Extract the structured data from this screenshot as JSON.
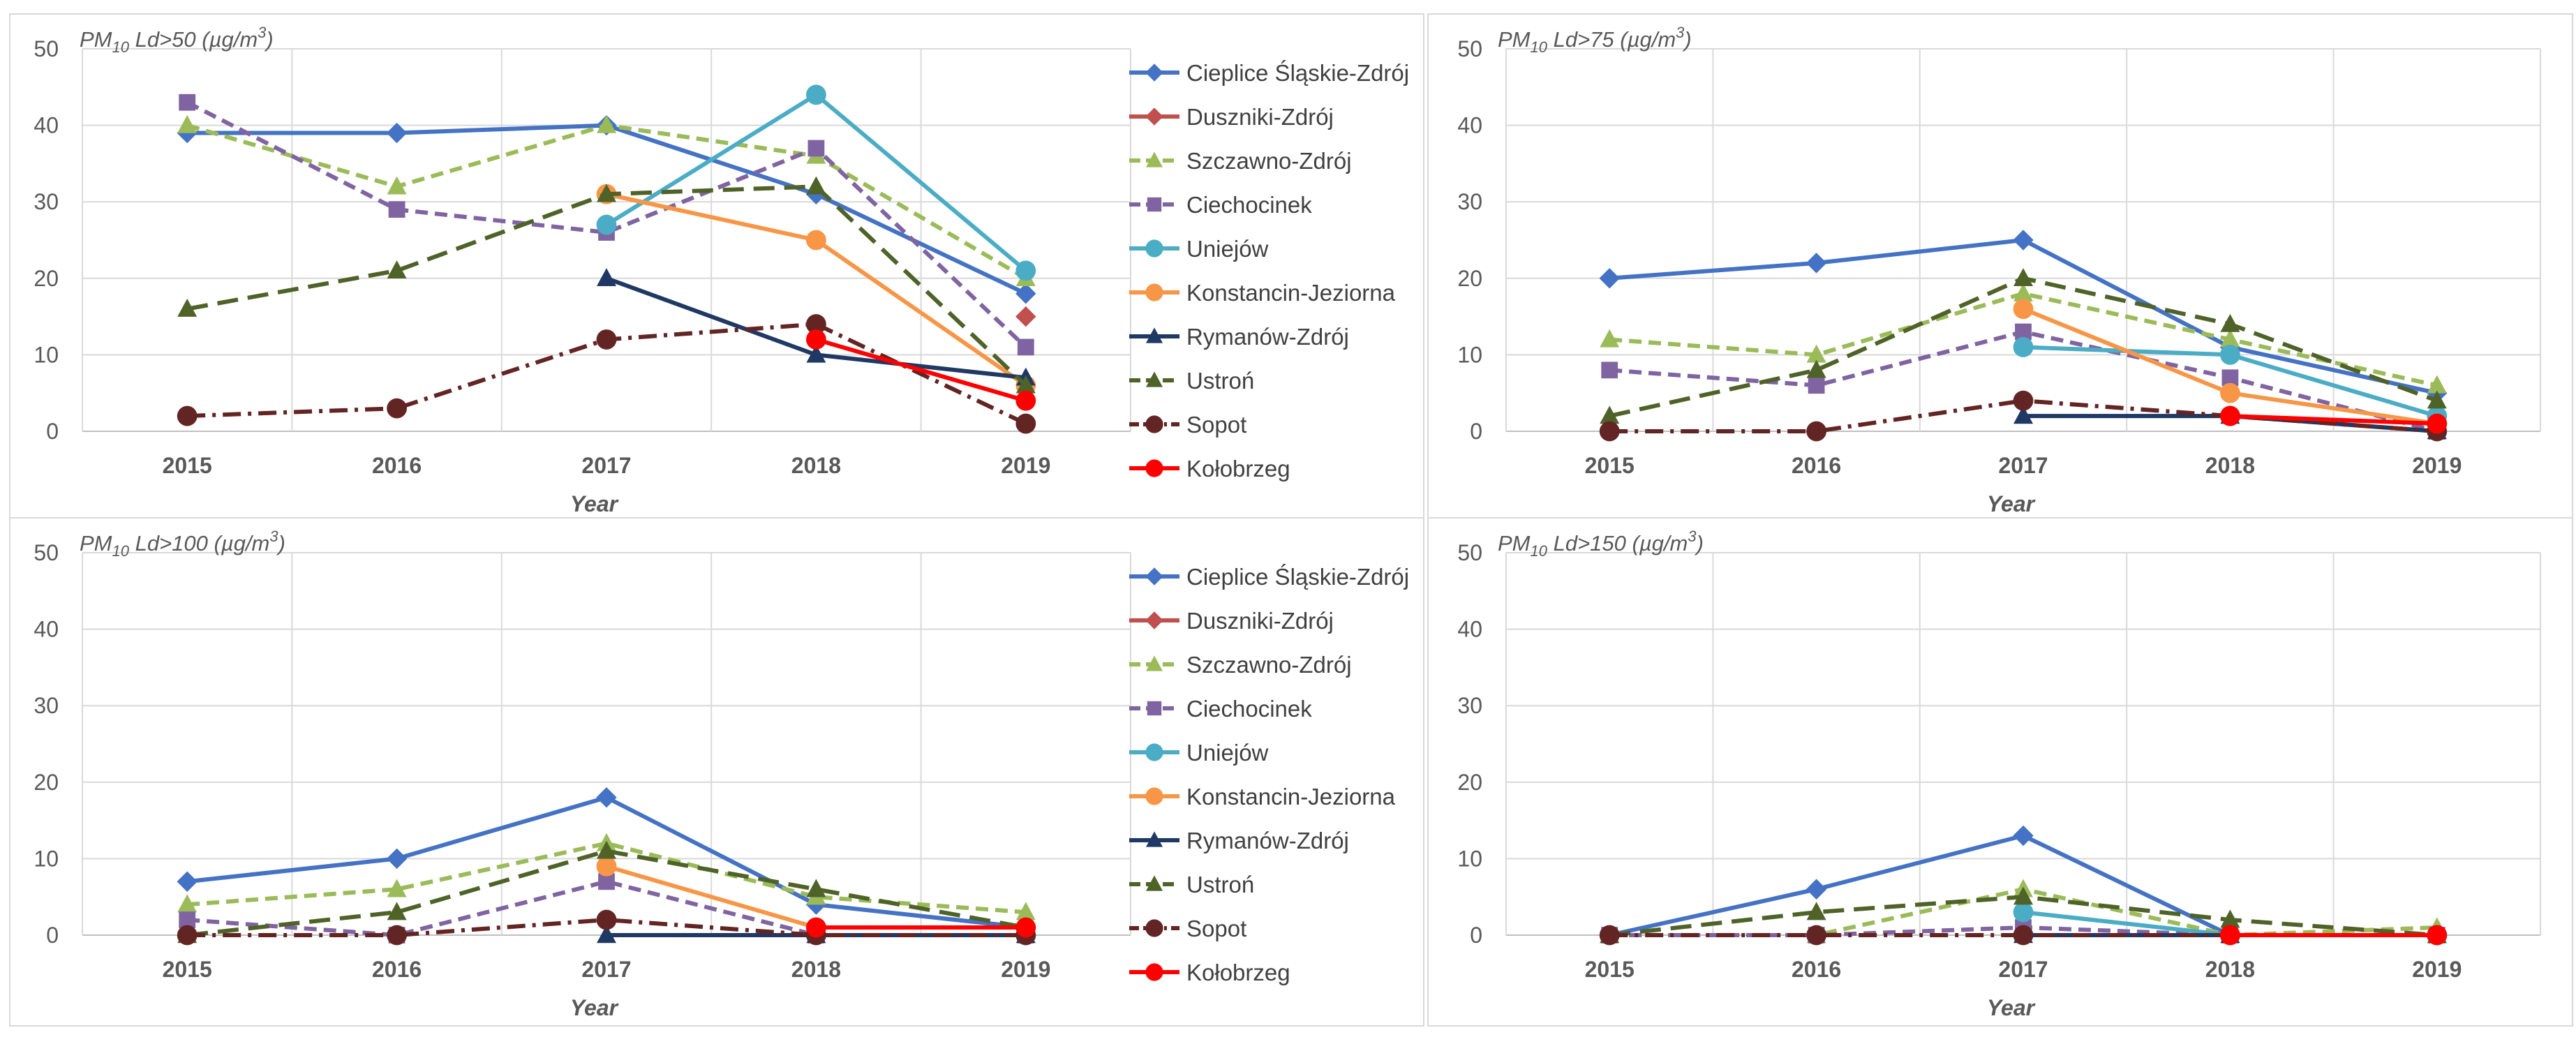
{
  "chart_data": [
    {
      "type": "line",
      "title_parts": [
        "PM",
        "10",
        "  Ld>50 (µg/m",
        "3",
        ")"
      ],
      "xlabel": "Year",
      "categories": [
        "2015",
        "2016",
        "2017",
        "2018",
        "2019"
      ],
      "ylim": [
        0,
        50
      ],
      "yticks": [
        "0",
        "10",
        "20",
        "30",
        "40",
        "50"
      ],
      "grid": true,
      "legend": "right",
      "series": [
        {
          "name": "Cieplice Śląskie-Zdrój",
          "values": [
            39,
            39,
            40,
            31,
            18
          ]
        },
        {
          "name": "Duszniki-Zdrój",
          "values": [
            null,
            null,
            null,
            null,
            15
          ]
        },
        {
          "name": "Szczawno-Zdrój",
          "values": [
            40,
            32,
            40,
            36,
            20
          ]
        },
        {
          "name": "Ciechocinek",
          "values": [
            43,
            29,
            26,
            37,
            11
          ]
        },
        {
          "name": "Uniejów",
          "values": [
            null,
            null,
            27,
            44,
            21
          ]
        },
        {
          "name": "Konstancin-Jeziorna",
          "values": [
            null,
            null,
            31,
            25,
            6
          ]
        },
        {
          "name": "Rymanów-Zdrój",
          "values": [
            null,
            null,
            20,
            10,
            7
          ]
        },
        {
          "name": "Ustroń",
          "values": [
            16,
            21,
            31,
            32,
            6
          ]
        },
        {
          "name": "Sopot",
          "values": [
            2,
            3,
            12,
            14,
            1
          ]
        },
        {
          "name": "Kołobrzeg",
          "values": [
            null,
            null,
            null,
            12,
            4
          ]
        }
      ]
    },
    {
      "type": "line",
      "title_parts": [
        "PM",
        "10",
        "  Ld>75 (µg/m",
        "3",
        ")"
      ],
      "xlabel": "Year",
      "categories": [
        "2015",
        "2016",
        "2017",
        "2018",
        "2019"
      ],
      "ylim": [
        0,
        50
      ],
      "yticks": [
        "0",
        "10",
        "20",
        "30",
        "40",
        "50"
      ],
      "grid": true,
      "legend": "none",
      "series": [
        {
          "name": "Cieplice Śląskie-Zdrój",
          "values": [
            20,
            22,
            25,
            11,
            5
          ]
        },
        {
          "name": "Duszniki-Zdrój",
          "values": [
            null,
            null,
            null,
            null,
            null
          ]
        },
        {
          "name": "Szczawno-Zdrój",
          "values": [
            12,
            10,
            18,
            12,
            6
          ]
        },
        {
          "name": "Ciechocinek",
          "values": [
            8,
            6,
            13,
            7,
            0
          ]
        },
        {
          "name": "Uniejów",
          "values": [
            null,
            null,
            11,
            10,
            2
          ]
        },
        {
          "name": "Konstancin-Jeziorna",
          "values": [
            null,
            null,
            16,
            5,
            1
          ]
        },
        {
          "name": "Rymanów-Zdrój",
          "values": [
            null,
            null,
            2,
            2,
            0
          ]
        },
        {
          "name": "Ustroń",
          "values": [
            2,
            8,
            20,
            14,
            4
          ]
        },
        {
          "name": "Sopot",
          "values": [
            0,
            0,
            4,
            2,
            0
          ]
        },
        {
          "name": "Kołobrzeg",
          "values": [
            null,
            null,
            null,
            2,
            1
          ]
        }
      ]
    },
    {
      "type": "line",
      "title_parts": [
        "PM",
        "10",
        "  Ld>100 (µg/m",
        "3",
        ")"
      ],
      "xlabel": "Year",
      "categories": [
        "2015",
        "2016",
        "2017",
        "2018",
        "2019"
      ],
      "ylim": [
        0,
        50
      ],
      "yticks": [
        "0",
        "10",
        "20",
        "30",
        "40",
        "50"
      ],
      "grid": true,
      "legend": "right",
      "series": [
        {
          "name": "Cieplice Śląskie-Zdrój",
          "values": [
            7,
            10,
            18,
            4,
            1
          ]
        },
        {
          "name": "Duszniki-Zdrój",
          "values": [
            null,
            null,
            null,
            null,
            null
          ]
        },
        {
          "name": "Szczawno-Zdrój",
          "values": [
            4,
            6,
            12,
            5,
            3
          ]
        },
        {
          "name": "Ciechocinek",
          "values": [
            2,
            0,
            7,
            0,
            0
          ]
        },
        {
          "name": "Uniejów",
          "values": [
            null,
            null,
            null,
            0,
            0
          ]
        },
        {
          "name": "Konstancin-Jeziorna",
          "values": [
            null,
            null,
            9,
            1,
            1
          ]
        },
        {
          "name": "Rymanów-Zdrój",
          "values": [
            null,
            null,
            0,
            0,
            0
          ]
        },
        {
          "name": "Ustroń",
          "values": [
            0,
            3,
            11,
            6,
            1
          ]
        },
        {
          "name": "Sopot",
          "values": [
            0,
            0,
            2,
            0,
            0
          ]
        },
        {
          "name": "Kołobrzeg",
          "values": [
            null,
            null,
            null,
            1,
            1
          ]
        }
      ]
    },
    {
      "type": "line",
      "title_parts": [
        "PM",
        "10",
        "  Ld>150 (µg/m",
        "3",
        ")"
      ],
      "xlabel": "Year",
      "categories": [
        "2015",
        "2016",
        "2017",
        "2018",
        "2019"
      ],
      "ylim": [
        0,
        50
      ],
      "yticks": [
        "0",
        "10",
        "20",
        "30",
        "40",
        "50"
      ],
      "grid": true,
      "legend": "none",
      "series": [
        {
          "name": "Cieplice Śląskie-Zdrój",
          "values": [
            0,
            6,
            13,
            0,
            0
          ]
        },
        {
          "name": "Duszniki-Zdrój",
          "values": [
            null,
            null,
            null,
            null,
            null
          ]
        },
        {
          "name": "Szczawno-Zdrój",
          "values": [
            0,
            0,
            6,
            0,
            1
          ]
        },
        {
          "name": "Ciechocinek",
          "values": [
            0,
            0,
            1,
            0,
            0
          ]
        },
        {
          "name": "Uniejów",
          "values": [
            null,
            null,
            3,
            0,
            0
          ]
        },
        {
          "name": "Konstancin-Jeziorna",
          "values": [
            null,
            null,
            null,
            null,
            null
          ]
        },
        {
          "name": "Rymanów-Zdrój",
          "values": [
            null,
            null,
            0,
            0,
            0
          ]
        },
        {
          "name": "Ustroń",
          "values": [
            0,
            3,
            5,
            2,
            0
          ]
        },
        {
          "name": "Sopot",
          "values": [
            0,
            0,
            0,
            0,
            0
          ]
        },
        {
          "name": "Kołobrzeg",
          "values": [
            null,
            null,
            null,
            0,
            0
          ]
        }
      ]
    }
  ],
  "series_styles": [
    {
      "color": "#4472C4",
      "dash": "solid",
      "marker": "diamond"
    },
    {
      "color": "#C0504D",
      "dash": "solid",
      "marker": "diamond"
    },
    {
      "color": "#9BBB59",
      "dash": "dash",
      "marker": "triangle"
    },
    {
      "color": "#8064A2",
      "dash": "dash",
      "marker": "square"
    },
    {
      "color": "#4BACC6",
      "dash": "solid",
      "marker": "circle"
    },
    {
      "color": "#F79646",
      "dash": "solid",
      "marker": "circle"
    },
    {
      "color": "#1F3864",
      "dash": "solid",
      "marker": "triangle"
    },
    {
      "color": "#4F6228",
      "dash": "longdash",
      "marker": "triangle"
    },
    {
      "color": "#632523",
      "dash": "dashdot",
      "marker": "circle"
    },
    {
      "color": "#FF0000",
      "dash": "solid",
      "marker": "circle"
    }
  ]
}
